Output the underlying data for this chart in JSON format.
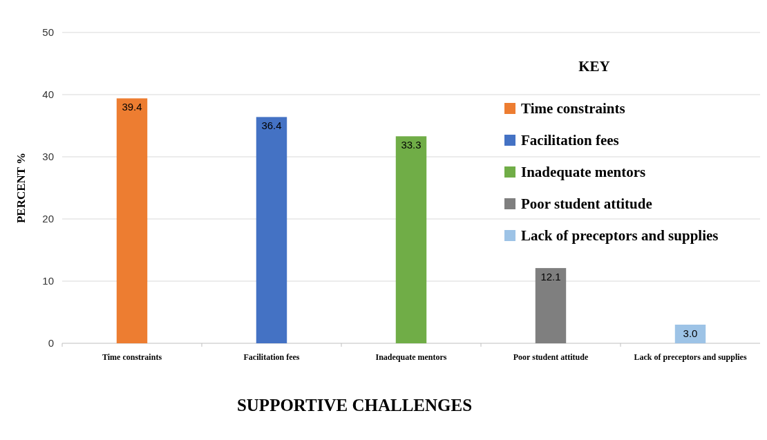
{
  "chart_data": {
    "type": "bar",
    "stacked": true,
    "xlabel": "SUPPORTIVE CHALLENGES",
    "ylabel": "PERCENT %",
    "legend_title": "KEY",
    "legend": "top right",
    "categories": [
      "Time constraints",
      "Facilitation fees",
      "Inadequate mentors",
      "Poor student attitude",
      "Lack of preceptors and supplies"
    ],
    "series": [
      {
        "name": "Time constraints",
        "color": "#ed7d31",
        "values": [
          39.4,
          null,
          null,
          null,
          null
        ],
        "value_labels": [
          "39.4",
          null,
          null,
          null,
          null
        ]
      },
      {
        "name": "Facilitation fees",
        "color": "#4472c4",
        "values": [
          null,
          36.4,
          null,
          null,
          null
        ],
        "value_labels": [
          null,
          "36.4",
          null,
          null,
          null
        ]
      },
      {
        "name": "Inadequate mentors",
        "color": "#70ad47",
        "values": [
          null,
          null,
          33.3,
          null,
          null
        ],
        "value_labels": [
          null,
          null,
          "33.3",
          null,
          null
        ]
      },
      {
        "name": "Poor student attitude",
        "color": "#7f7f7f",
        "values": [
          null,
          null,
          null,
          12.1,
          null
        ],
        "value_labels": [
          null,
          null,
          null,
          "12.1",
          null
        ]
      },
      {
        "name": "Lack of preceptors and supplies",
        "color": "#9dc3e6",
        "values": [
          null,
          null,
          null,
          null,
          3.0
        ],
        "value_labels": [
          null,
          null,
          null,
          null,
          "3.0"
        ]
      }
    ],
    "ylim": [
      0,
      50
    ],
    "yticks": [
      0,
      10,
      20,
      30,
      40,
      50
    ],
    "grid": "y"
  }
}
